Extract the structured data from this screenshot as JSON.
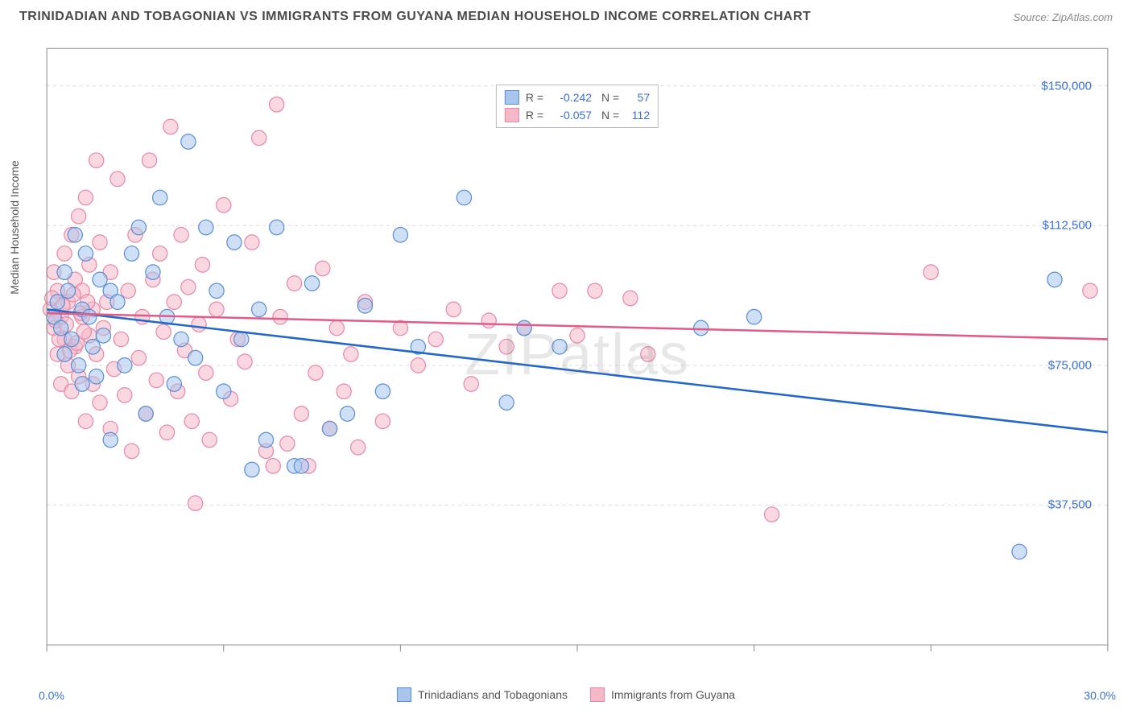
{
  "header": {
    "title": "TRINIDADIAN AND TOBAGONIAN VS IMMIGRANTS FROM GUYANA MEDIAN HOUSEHOLD INCOME CORRELATION CHART",
    "source": "Source: ZipAtlas.com"
  },
  "watermark": "ZIPatlas",
  "chart": {
    "type": "scatter",
    "ylabel": "Median Household Income",
    "xlim": [
      0,
      30
    ],
    "ylim": [
      0,
      160000
    ],
    "xtick_labels": [
      "0.0%",
      "30.0%"
    ],
    "yticks": [
      {
        "v": 37500,
        "label": "$37,500"
      },
      {
        "v": 75000,
        "label": "$75,000"
      },
      {
        "v": 112500,
        "label": "$112,500"
      },
      {
        "v": 150000,
        "label": "$150,000"
      }
    ],
    "grid_color": "#dddddd",
    "axis_color": "#888888",
    "background_color": "#ffffff",
    "marker_radius": 9,
    "marker_opacity": 0.55,
    "series": [
      {
        "name": "Trinidadians and Tobagonians",
        "fill": "#a8c5ec",
        "stroke": "#5b8fd6",
        "line_color": "#2566c9",
        "R": "-0.242",
        "N": "57",
        "trend": {
          "x1": 0,
          "y1": 90000,
          "x2": 30,
          "y2": 57000
        },
        "points": [
          [
            0.2,
            88000
          ],
          [
            0.3,
            92000
          ],
          [
            0.4,
            85000
          ],
          [
            0.5,
            100000
          ],
          [
            0.5,
            78000
          ],
          [
            0.6,
            95000
          ],
          [
            0.7,
            82000
          ],
          [
            0.8,
            110000
          ],
          [
            0.9,
            75000
          ],
          [
            1.0,
            90000
          ],
          [
            1.0,
            70000
          ],
          [
            1.1,
            105000
          ],
          [
            1.2,
            88000
          ],
          [
            1.3,
            80000
          ],
          [
            1.4,
            72000
          ],
          [
            1.5,
            98000
          ],
          [
            1.6,
            83000
          ],
          [
            1.8,
            95000
          ],
          [
            2.0,
            92000
          ],
          [
            2.2,
            75000
          ],
          [
            2.4,
            105000
          ],
          [
            2.6,
            112000
          ],
          [
            2.8,
            62000
          ],
          [
            3.0,
            100000
          ],
          [
            3.2,
            120000
          ],
          [
            3.4,
            88000
          ],
          [
            3.6,
            70000
          ],
          [
            3.8,
            82000
          ],
          [
            4.0,
            135000
          ],
          [
            4.2,
            77000
          ],
          [
            4.5,
            112000
          ],
          [
            4.8,
            95000
          ],
          [
            5.0,
            68000
          ],
          [
            5.3,
            108000
          ],
          [
            5.5,
            82000
          ],
          [
            5.8,
            47000
          ],
          [
            6.0,
            90000
          ],
          [
            6.2,
            55000
          ],
          [
            6.5,
            112000
          ],
          [
            7.0,
            48000
          ],
          [
            7.2,
            48000
          ],
          [
            7.5,
            97000
          ],
          [
            8.0,
            58000
          ],
          [
            8.5,
            62000
          ],
          [
            9.0,
            91000
          ],
          [
            9.5,
            68000
          ],
          [
            10.0,
            110000
          ],
          [
            10.5,
            80000
          ],
          [
            11.8,
            120000
          ],
          [
            13.0,
            65000
          ],
          [
            13.5,
            85000
          ],
          [
            14.5,
            80000
          ],
          [
            18.5,
            85000
          ],
          [
            20.0,
            88000
          ],
          [
            27.5,
            25000
          ],
          [
            28.5,
            98000
          ],
          [
            1.8,
            55000
          ]
        ]
      },
      {
        "name": "Immigrants from Guyana",
        "fill": "#f5b8c8",
        "stroke": "#e889a5",
        "line_color": "#e15b87",
        "R": "-0.057",
        "N": "112",
        "trend": {
          "x1": 0,
          "y1": 89000,
          "x2": 30,
          "y2": 82000
        },
        "points": [
          [
            0.1,
            90000
          ],
          [
            0.2,
            85000
          ],
          [
            0.2,
            100000
          ],
          [
            0.3,
            78000
          ],
          [
            0.3,
            95000
          ],
          [
            0.4,
            88000
          ],
          [
            0.4,
            70000
          ],
          [
            0.5,
            105000
          ],
          [
            0.5,
            82000
          ],
          [
            0.6,
            92000
          ],
          [
            0.6,
            75000
          ],
          [
            0.7,
            110000
          ],
          [
            0.7,
            68000
          ],
          [
            0.8,
            98000
          ],
          [
            0.8,
            80000
          ],
          [
            0.9,
            115000
          ],
          [
            0.9,
            72000
          ],
          [
            1.0,
            88000
          ],
          [
            1.0,
            95000
          ],
          [
            1.1,
            60000
          ],
          [
            1.1,
            120000
          ],
          [
            1.2,
            83000
          ],
          [
            1.2,
            102000
          ],
          [
            1.3,
            70000
          ],
          [
            1.3,
            90000
          ],
          [
            1.4,
            78000
          ],
          [
            1.4,
            130000
          ],
          [
            1.5,
            65000
          ],
          [
            1.5,
            108000
          ],
          [
            1.6,
            85000
          ],
          [
            1.7,
            92000
          ],
          [
            1.8,
            58000
          ],
          [
            1.8,
            100000
          ],
          [
            1.9,
            74000
          ],
          [
            2.0,
            125000
          ],
          [
            2.1,
            82000
          ],
          [
            2.2,
            67000
          ],
          [
            2.3,
            95000
          ],
          [
            2.4,
            52000
          ],
          [
            2.5,
            110000
          ],
          [
            2.6,
            77000
          ],
          [
            2.7,
            88000
          ],
          [
            2.8,
            62000
          ],
          [
            2.9,
            130000
          ],
          [
            3.0,
            98000
          ],
          [
            3.1,
            71000
          ],
          [
            3.2,
            105000
          ],
          [
            3.3,
            84000
          ],
          [
            3.4,
            57000
          ],
          [
            3.5,
            139000
          ],
          [
            3.6,
            92000
          ],
          [
            3.7,
            68000
          ],
          [
            3.8,
            110000
          ],
          [
            3.9,
            79000
          ],
          [
            4.0,
            96000
          ],
          [
            4.1,
            60000
          ],
          [
            4.2,
            38000
          ],
          [
            4.3,
            86000
          ],
          [
            4.4,
            102000
          ],
          [
            4.5,
            73000
          ],
          [
            4.6,
            55000
          ],
          [
            4.8,
            90000
          ],
          [
            5.0,
            118000
          ],
          [
            5.2,
            66000
          ],
          [
            5.4,
            82000
          ],
          [
            5.6,
            76000
          ],
          [
            5.8,
            108000
          ],
          [
            6.0,
            136000
          ],
          [
            6.2,
            52000
          ],
          [
            6.4,
            48000
          ],
          [
            6.6,
            88000
          ],
          [
            6.8,
            54000
          ],
          [
            6.5,
            145000
          ],
          [
            7.0,
            97000
          ],
          [
            7.2,
            62000
          ],
          [
            7.4,
            48000
          ],
          [
            7.6,
            73000
          ],
          [
            7.8,
            101000
          ],
          [
            8.0,
            58000
          ],
          [
            8.2,
            85000
          ],
          [
            8.4,
            68000
          ],
          [
            8.6,
            78000
          ],
          [
            8.8,
            53000
          ],
          [
            9.0,
            92000
          ],
          [
            9.5,
            60000
          ],
          [
            10.0,
            85000
          ],
          [
            10.5,
            75000
          ],
          [
            11.0,
            82000
          ],
          [
            11.5,
            90000
          ],
          [
            12.0,
            70000
          ],
          [
            12.5,
            87000
          ],
          [
            13.0,
            80000
          ],
          [
            13.5,
            85000
          ],
          [
            14.5,
            95000
          ],
          [
            15.0,
            83000
          ],
          [
            15.5,
            95000
          ],
          [
            16.5,
            93000
          ],
          [
            17.0,
            78000
          ],
          [
            20.5,
            35000
          ],
          [
            25.0,
            100000
          ],
          [
            29.5,
            95000
          ],
          [
            0.15,
            93000
          ],
          [
            0.25,
            87000
          ],
          [
            0.35,
            82000
          ],
          [
            0.45,
            91000
          ],
          [
            0.55,
            86000
          ],
          [
            0.65,
            79000
          ],
          [
            0.75,
            94000
          ],
          [
            0.85,
            81000
          ],
          [
            0.95,
            89000
          ],
          [
            1.05,
            84000
          ],
          [
            1.15,
            92000
          ]
        ]
      }
    ]
  },
  "legend": {
    "items": [
      {
        "label": "Trinidadians and Tobagonians",
        "series": 0
      },
      {
        "label": "Immigrants from Guyana",
        "series": 1
      }
    ]
  }
}
